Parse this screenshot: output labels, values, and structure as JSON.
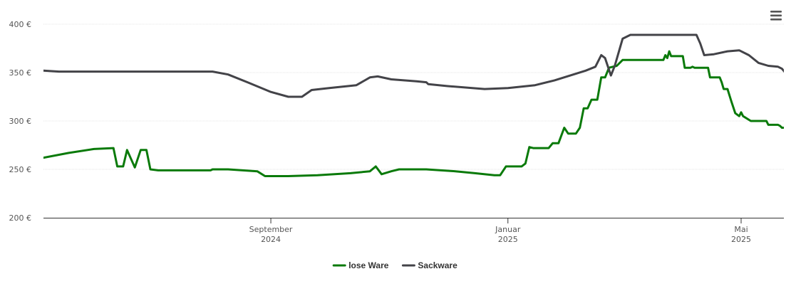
{
  "chart_data": {
    "type": "line",
    "title": "",
    "xlabel": "",
    "ylabel": "",
    "y_unit": "€",
    "ylim": [
      200,
      400
    ],
    "y_ticks": [
      {
        "value": 200,
        "label": "200 €"
      },
      {
        "value": 250,
        "label": "250 €"
      },
      {
        "value": 300,
        "label": "300 €"
      },
      {
        "value": 350,
        "label": "350 €"
      },
      {
        "value": 400,
        "label": "400 €"
      }
    ],
    "xlim": [
      "2024-05-07",
      "2025-05-23"
    ],
    "x_ticks": [
      {
        "date": "2024-09-01",
        "month": "September",
        "year": "2024"
      },
      {
        "date": "2025-01-01",
        "month": "Januar",
        "year": "2025"
      },
      {
        "date": "2025-05-01",
        "month": "Mai",
        "year": "2025"
      }
    ],
    "grid": true,
    "legend_position": "bottom-center",
    "series": [
      {
        "name": "lose Ware",
        "color": "#0a7a0a",
        "points": [
          [
            "2024-05-07",
            262
          ],
          [
            "2024-05-20",
            267
          ],
          [
            "2024-06-02",
            271
          ],
          [
            "2024-06-12",
            272
          ],
          [
            "2024-06-14",
            253
          ],
          [
            "2024-06-17",
            253
          ],
          [
            "2024-06-19",
            270
          ],
          [
            "2024-06-23",
            252
          ],
          [
            "2024-06-26",
            270
          ],
          [
            "2024-06-29",
            270
          ],
          [
            "2024-07-01",
            250
          ],
          [
            "2024-07-05",
            249
          ],
          [
            "2024-07-20",
            249
          ],
          [
            "2024-08-01",
            249
          ],
          [
            "2024-08-02",
            250
          ],
          [
            "2024-08-10",
            250
          ],
          [
            "2024-08-25",
            248
          ],
          [
            "2024-08-29",
            243
          ],
          [
            "2024-09-10",
            243
          ],
          [
            "2024-09-25",
            244
          ],
          [
            "2024-10-12",
            246
          ],
          [
            "2024-10-22",
            248
          ],
          [
            "2024-10-25",
            253
          ],
          [
            "2024-10-28",
            245
          ],
          [
            "2024-11-02",
            248
          ],
          [
            "2024-11-06",
            250
          ],
          [
            "2024-11-20",
            250
          ],
          [
            "2024-12-05",
            248
          ],
          [
            "2024-12-15",
            246
          ],
          [
            "2024-12-25",
            244
          ],
          [
            "2024-12-28",
            244
          ],
          [
            "2024-12-31",
            253
          ],
          [
            "2025-01-08",
            253
          ],
          [
            "2025-01-10",
            256
          ],
          [
            "2025-01-12",
            273
          ],
          [
            "2025-01-14",
            272
          ],
          [
            "2025-01-22",
            272
          ],
          [
            "2025-01-24",
            277
          ],
          [
            "2025-01-27",
            277
          ],
          [
            "2025-01-30",
            293
          ],
          [
            "2025-02-01",
            287
          ],
          [
            "2025-02-05",
            287
          ],
          [
            "2025-02-07",
            293
          ],
          [
            "2025-02-09",
            313
          ],
          [
            "2025-02-11",
            313
          ],
          [
            "2025-02-13",
            322
          ],
          [
            "2025-02-16",
            322
          ],
          [
            "2025-02-18",
            345
          ],
          [
            "2025-02-20",
            345
          ],
          [
            "2025-02-22",
            355
          ],
          [
            "2025-02-26",
            357
          ],
          [
            "2025-03-01",
            363
          ],
          [
            "2025-03-10",
            363
          ],
          [
            "2025-03-18",
            363
          ],
          [
            "2025-03-22",
            363
          ],
          [
            "2025-03-23",
            368
          ],
          [
            "2025-03-24",
            365
          ],
          [
            "2025-03-25",
            372
          ],
          [
            "2025-03-26",
            367
          ],
          [
            "2025-04-01",
            367
          ],
          [
            "2025-04-02",
            355
          ],
          [
            "2025-04-05",
            355
          ],
          [
            "2025-04-06",
            356
          ],
          [
            "2025-04-07",
            355
          ],
          [
            "2025-04-12",
            355
          ],
          [
            "2025-04-14",
            355
          ],
          [
            "2025-04-15",
            345
          ],
          [
            "2025-04-20",
            345
          ],
          [
            "2025-04-21",
            340
          ],
          [
            "2025-04-22",
            333
          ],
          [
            "2025-04-24",
            333
          ],
          [
            "2025-04-26",
            320
          ],
          [
            "2025-04-28",
            308
          ],
          [
            "2025-04-30",
            305
          ],
          [
            "2025-05-01",
            309
          ],
          [
            "2025-05-02",
            305
          ],
          [
            "2025-05-06",
            300
          ],
          [
            "2025-05-14",
            300
          ],
          [
            "2025-05-15",
            296
          ],
          [
            "2025-05-20",
            296
          ],
          [
            "2025-05-21",
            295
          ],
          [
            "2025-05-22",
            293
          ],
          [
            "2025-05-26",
            293
          ],
          [
            "2025-05-27",
            287
          ],
          [
            "2025-06-02",
            287
          ]
        ]
      },
      {
        "name": "Sackware",
        "color": "#434348",
        "points": [
          [
            "2024-05-07",
            352
          ],
          [
            "2024-05-15",
            351
          ],
          [
            "2024-06-15",
            351
          ],
          [
            "2024-07-20",
            351
          ],
          [
            "2024-08-02",
            351
          ],
          [
            "2024-08-10",
            348
          ],
          [
            "2024-08-20",
            340
          ],
          [
            "2024-09-01",
            330
          ],
          [
            "2024-09-10",
            325
          ],
          [
            "2024-09-17",
            325
          ],
          [
            "2024-09-22",
            332
          ],
          [
            "2024-10-01",
            334
          ],
          [
            "2024-10-15",
            337
          ],
          [
            "2024-10-22",
            345
          ],
          [
            "2024-10-26",
            346
          ],
          [
            "2024-11-02",
            343
          ],
          [
            "2024-11-15",
            341
          ],
          [
            "2024-11-20",
            340
          ],
          [
            "2024-11-21",
            338
          ],
          [
            "2024-12-01",
            336
          ],
          [
            "2024-12-20",
            333
          ],
          [
            "2025-01-01",
            334
          ],
          [
            "2025-01-15",
            337
          ],
          [
            "2025-01-25",
            342
          ],
          [
            "2025-02-10",
            352
          ],
          [
            "2025-02-15",
            356
          ],
          [
            "2025-02-18",
            368
          ],
          [
            "2025-02-20",
            365
          ],
          [
            "2025-02-23",
            347
          ],
          [
            "2025-02-25",
            357
          ],
          [
            "2025-03-01",
            385
          ],
          [
            "2025-03-05",
            389
          ],
          [
            "2025-03-20",
            389
          ],
          [
            "2025-04-01",
            389
          ],
          [
            "2025-04-08",
            389
          ],
          [
            "2025-04-10",
            380
          ],
          [
            "2025-04-12",
            368
          ],
          [
            "2025-04-17",
            369
          ],
          [
            "2025-04-24",
            372
          ],
          [
            "2025-04-30",
            373
          ],
          [
            "2025-05-05",
            368
          ],
          [
            "2025-05-10",
            360
          ],
          [
            "2025-05-15",
            357
          ],
          [
            "2025-05-20",
            356
          ],
          [
            "2025-05-22",
            354
          ],
          [
            "2025-05-27",
            342
          ],
          [
            "2025-06-02",
            341
          ]
        ]
      }
    ]
  }
}
